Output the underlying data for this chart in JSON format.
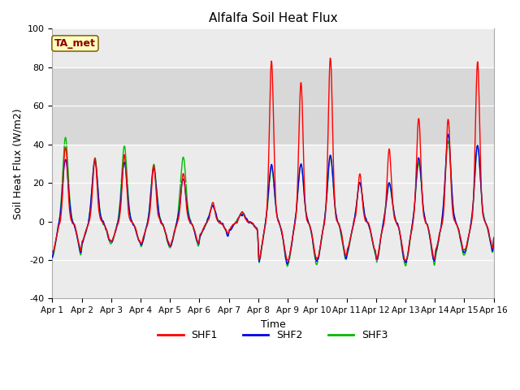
{
  "title": "Alfalfa Soil Heat Flux",
  "xlabel": "Time",
  "ylabel": "Soil Heat Flux (W/m2)",
  "ylim": [
    -40,
    100
  ],
  "xlim": [
    0,
    15
  ],
  "xtick_labels": [
    "Apr 1",
    "Apr 2",
    "Apr 3",
    "Apr 4",
    "Apr 5",
    "Apr 6",
    "Apr 7",
    "Apr 8",
    "Apr 9",
    "Apr 10",
    "Apr 11",
    "Apr 12",
    "Apr 13",
    "Apr 14",
    "Apr 15",
    "Apr 16"
  ],
  "shaded_band": [
    40,
    80
  ],
  "shaded_color": "#d8d8d8",
  "bg_color": "#ebebeb",
  "plot_bg": "#f5f5f5",
  "line_colors": {
    "SHF1": "#ff0000",
    "SHF2": "#0000ee",
    "SHF3": "#00bb00"
  },
  "line_width": 1.0,
  "annotation_text": "TA_met",
  "annotation_color": "#8b0000",
  "annotation_bg": "#ffffc0",
  "annotation_edge": "#8b6914"
}
